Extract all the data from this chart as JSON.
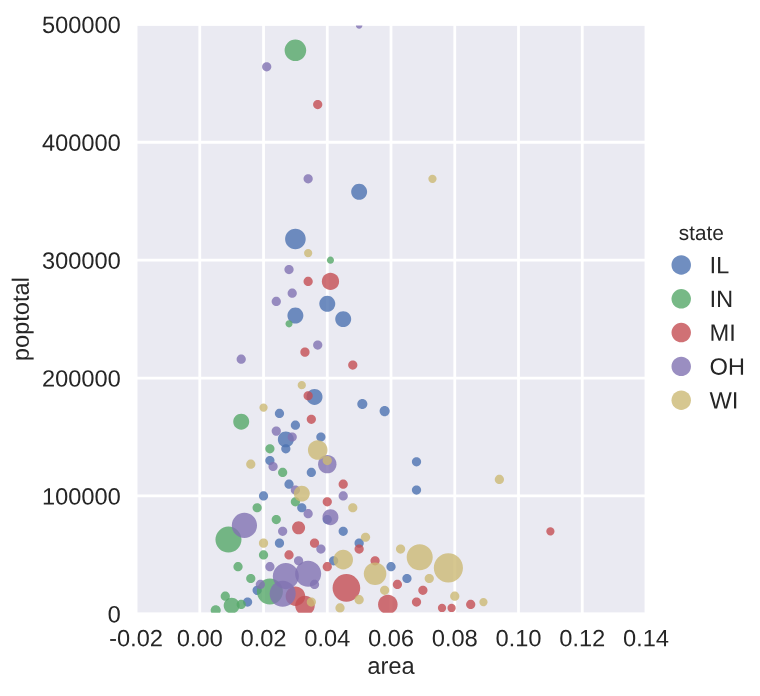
{
  "chart_data": {
    "type": "bubble",
    "xlabel": "area",
    "ylabel": "poptotal",
    "legend_title": "state",
    "legend": "right",
    "grid": true,
    "marker": "circle",
    "xlim": [
      -0.02,
      0.14
    ],
    "ylim": [
      0,
      500000
    ],
    "xticks": [
      {
        "value": -0.02,
        "label": "-0.02"
      },
      {
        "value": 0.0,
        "label": "0.00"
      },
      {
        "value": 0.02,
        "label": "0.02"
      },
      {
        "value": 0.04,
        "label": "0.04"
      },
      {
        "value": 0.06,
        "label": "0.06"
      },
      {
        "value": 0.08,
        "label": "0.08"
      },
      {
        "value": 0.1,
        "label": "0.10"
      },
      {
        "value": 0.12,
        "label": "0.12"
      },
      {
        "value": 0.14,
        "label": "0.14"
      }
    ],
    "yticks": [
      0,
      100000,
      200000,
      300000,
      400000,
      500000
    ],
    "series": [
      {
        "name": "IL",
        "color": "#4c72b0",
        "x": [
          0.05,
          0.03,
          0.04,
          0.03,
          0.045,
          0.036,
          0.051,
          0.058,
          0.027,
          0.068,
          0.068,
          0.025,
          0.03,
          0.027,
          0.035,
          0.02,
          0.032,
          0.04,
          0.045,
          0.05,
          0.025,
          0.06,
          0.065,
          0.018,
          0.015,
          0.042,
          0.028,
          0.038,
          0.022
        ],
        "values": [
          358000,
          318000,
          263000,
          253000,
          250000,
          184000,
          178000,
          172000,
          148000,
          129000,
          105000,
          170000,
          160000,
          140000,
          120000,
          100000,
          90000,
          80000,
          70000,
          60000,
          60000,
          40000,
          30000,
          20000,
          10000,
          45000,
          110000,
          150000,
          130000
        ],
        "sizes": [
          0.3,
          0.5,
          0.3,
          0.3,
          0.3,
          0.3,
          0.12,
          0.12,
          0.3,
          0.1,
          0.1,
          0.1,
          0.1,
          0.1,
          0.1,
          0.1,
          0.1,
          0.1,
          0.1,
          0.1,
          0.1,
          0.1,
          0.1,
          0.1,
          0.1,
          0.1,
          0.1,
          0.1,
          0.1
        ]
      },
      {
        "name": "IN",
        "color": "#55a868",
        "x": [
          0.03,
          0.041,
          0.028,
          0.013,
          0.009,
          0.022,
          0.01,
          0.005,
          0.022,
          0.018,
          0.024,
          0.012,
          0.016,
          0.02,
          0.008,
          0.013,
          0.026,
          0.03
        ],
        "values": [
          478000,
          300000,
          246000,
          163000,
          63000,
          19000,
          7000,
          3000,
          140000,
          90000,
          80000,
          40000,
          30000,
          50000,
          15000,
          8000,
          120000,
          95000
        ],
        "sizes": [
          0.55,
          0.06,
          0.06,
          0.3,
          0.8,
          0.8,
          0.3,
          0.12,
          0.1,
          0.1,
          0.1,
          0.1,
          0.1,
          0.1,
          0.1,
          0.1,
          0.1,
          0.1
        ]
      },
      {
        "name": "MI",
        "color": "#c44e52",
        "x": [
          0.037,
          0.034,
          0.041,
          0.033,
          0.048,
          0.031,
          0.11,
          0.046,
          0.059,
          0.033,
          0.03,
          0.076,
          0.079,
          0.035,
          0.04,
          0.045,
          0.036,
          0.05,
          0.055,
          0.062,
          0.07,
          0.068,
          0.04,
          0.028,
          0.085,
          0.034
        ],
        "values": [
          432000,
          282000,
          282000,
          222000,
          211000,
          73000,
          70000,
          22000,
          8000,
          7000,
          15000,
          5000,
          5000,
          165000,
          95000,
          110000,
          60000,
          55000,
          45000,
          25000,
          20000,
          10000,
          40000,
          50000,
          8000,
          185000
        ],
        "sizes": [
          0.1,
          0.1,
          0.35,
          0.1,
          0.1,
          0.2,
          0.08,
          0.9,
          0.45,
          0.45,
          0.45,
          0.08,
          0.08,
          0.1,
          0.1,
          0.1,
          0.1,
          0.1,
          0.1,
          0.1,
          0.1,
          0.1,
          0.1,
          0.1,
          0.1,
          0.1
        ]
      },
      {
        "name": "OH",
        "color": "#8172b2",
        "x": [
          0.05,
          0.021,
          0.034,
          0.028,
          0.029,
          0.024,
          0.013,
          0.037,
          0.04,
          0.014,
          0.041,
          0.027,
          0.034,
          0.026,
          0.023,
          0.03,
          0.034,
          0.026,
          0.038,
          0.031,
          0.022,
          0.045,
          0.019,
          0.036,
          0.029,
          0.024
        ],
        "values": [
          499000,
          464000,
          369000,
          292000,
          272000,
          265000,
          216000,
          228000,
          127000,
          75000,
          82000,
          32000,
          34000,
          17000,
          125000,
          105000,
          85000,
          70000,
          55000,
          45000,
          40000,
          100000,
          25000,
          25000,
          150000,
          155000
        ],
        "sizes": [
          0.05,
          0.1,
          0.1,
          0.1,
          0.1,
          0.1,
          0.1,
          0.1,
          0.4,
          0.75,
          0.3,
          0.8,
          0.8,
          0.8,
          0.1,
          0.1,
          0.1,
          0.1,
          0.1,
          0.1,
          0.1,
          0.1,
          0.1,
          0.1,
          0.1,
          0.1
        ]
      },
      {
        "name": "WI",
        "color": "#ccb974",
        "x": [
          0.073,
          0.034,
          0.02,
          0.032,
          0.037,
          0.016,
          0.094,
          0.032,
          0.069,
          0.078,
          0.055,
          0.045,
          0.089,
          0.04,
          0.048,
          0.052,
          0.058,
          0.072,
          0.08,
          0.035,
          0.044,
          0.063,
          0.05,
          0.02
        ],
        "values": [
          369000,
          306000,
          175000,
          194000,
          139000,
          127000,
          114000,
          102000,
          48000,
          39000,
          34000,
          46000,
          10000,
          130000,
          90000,
          65000,
          20000,
          30000,
          15000,
          10000,
          5000,
          55000,
          12000,
          60000
        ],
        "sizes": [
          0.08,
          0.08,
          0.08,
          0.08,
          0.45,
          0.1,
          0.1,
          0.3,
          0.8,
          1.0,
          0.6,
          0.45,
          0.08,
          0.1,
          0.1,
          0.1,
          0.1,
          0.1,
          0.1,
          0.1,
          0.1,
          0.1,
          0.1,
          0.1
        ]
      }
    ]
  }
}
